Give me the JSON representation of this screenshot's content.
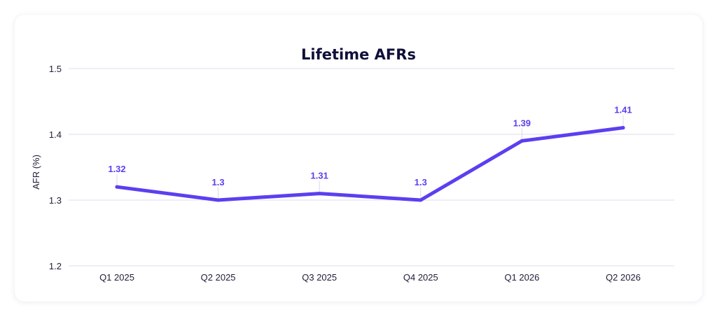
{
  "chart_data": {
    "type": "line",
    "title": "Lifetime AFRs",
    "xlabel": "",
    "ylabel": "AFR (%)",
    "categories": [
      "Q1 2025",
      "Q2 2025",
      "Q3 2025",
      "Q4 2025",
      "Q1 2026",
      "Q2 2026"
    ],
    "series": [
      {
        "values": [
          1.32,
          1.3,
          1.31,
          1.3,
          1.39,
          1.41
        ]
      }
    ],
    "data_labels": [
      "1.32",
      "1.3",
      "1.31",
      "1.3",
      "1.39",
      "1.41"
    ],
    "yticks": [
      "1.2",
      "1.3",
      "1.4",
      "1.5"
    ],
    "ylim": [
      1.2,
      1.5
    ],
    "grid": true,
    "legend": "none",
    "colors": {
      "line": "#5b3ff0",
      "grid": "#dcdcf2",
      "label": "#5b3ff0",
      "text": "#20203a"
    }
  }
}
